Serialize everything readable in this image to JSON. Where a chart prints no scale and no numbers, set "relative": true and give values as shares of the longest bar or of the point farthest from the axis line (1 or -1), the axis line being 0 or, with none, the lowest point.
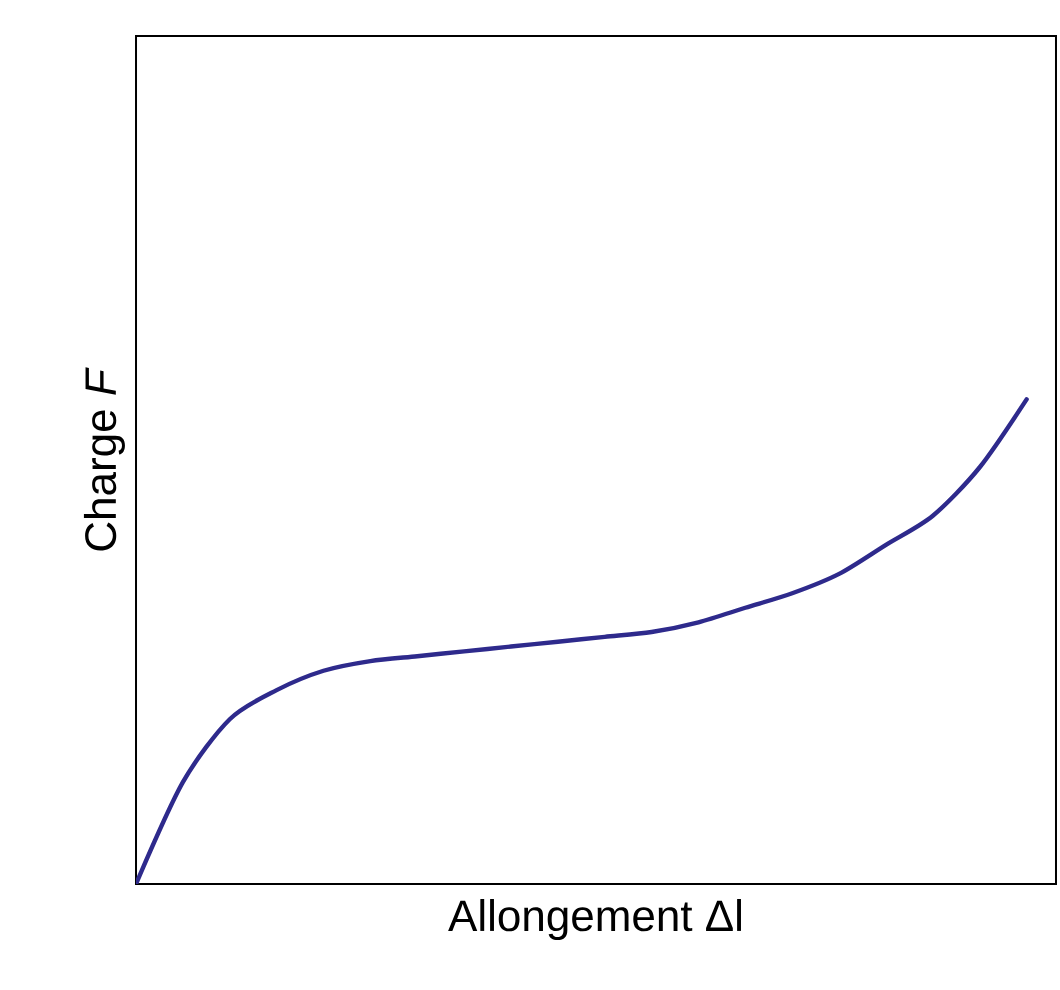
{
  "chart_data": {
    "type": "line",
    "xlabel": "Allongement Δl",
    "ylabel": "Charge *F*",
    "relative": true,
    "categories": [
      null,
      null,
      null,
      null,
      null,
      null,
      null,
      null,
      null,
      null,
      null,
      null,
      null,
      null,
      null,
      null,
      null,
      null,
      null,
      null
    ],
    "series": [
      {
        "color": "#2e2a8c",
        "values": [
          0,
          0.21,
          0.34,
          0.4,
          0.44,
          0.46,
          0.47,
          0.48,
          0.49,
          0.5,
          0.51,
          0.52,
          0.54,
          0.57,
          0.6,
          0.64,
          0.7,
          0.76,
          0.86,
          1.0
        ]
      }
    ]
  }
}
